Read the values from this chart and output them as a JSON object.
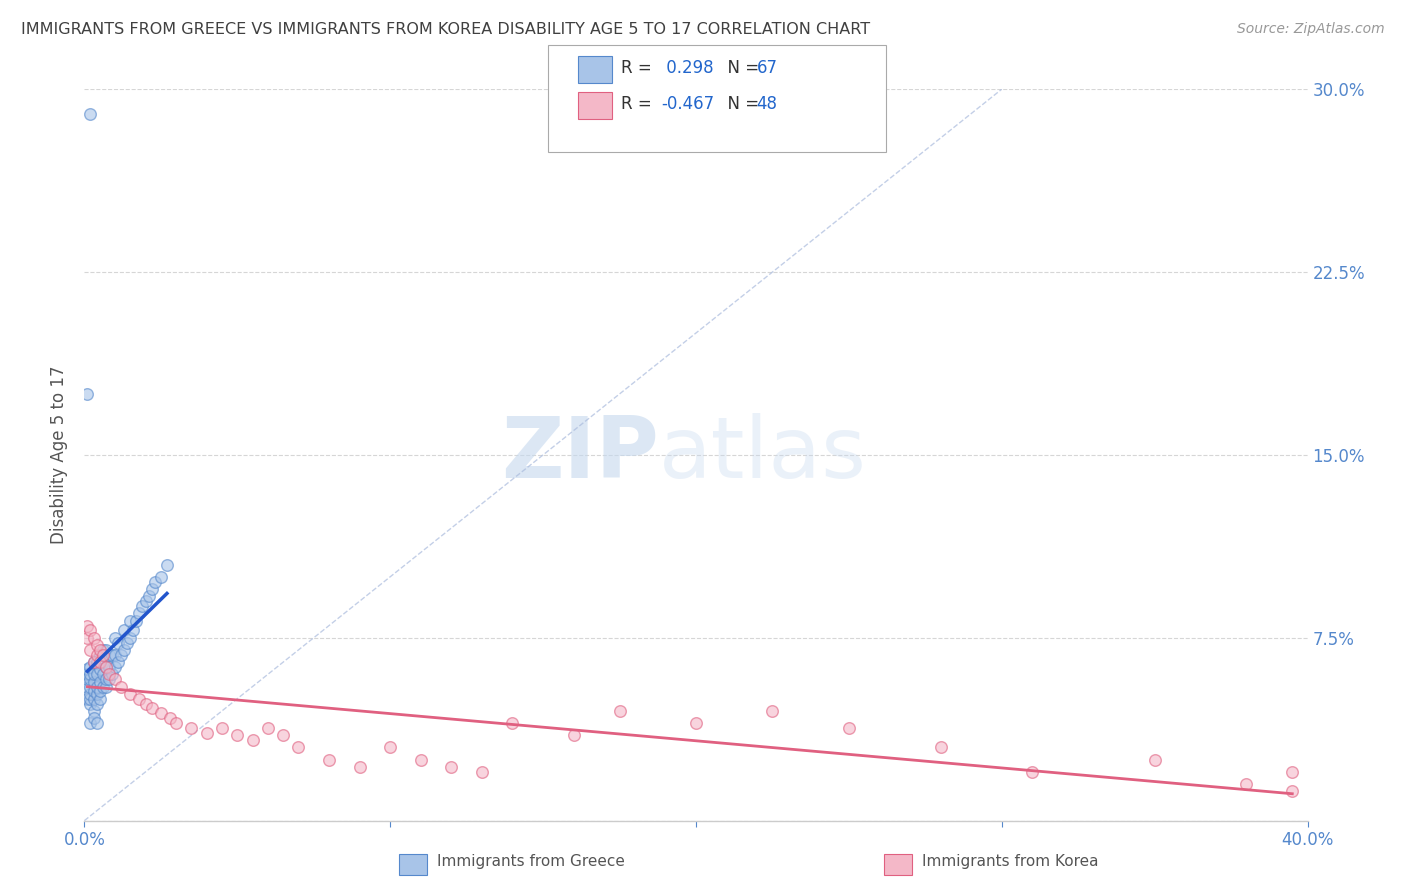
{
  "title": "IMMIGRANTS FROM GREECE VS IMMIGRANTS FROM KOREA DISABILITY AGE 5 TO 17 CORRELATION CHART",
  "source": "Source: ZipAtlas.com",
  "ylabel": "Disability Age 5 to 17",
  "xlim": [
    0.0,
    0.4
  ],
  "ylim": [
    0.0,
    0.3
  ],
  "greece_color": "#a8c4e8",
  "greece_edge": "#5588cc",
  "korea_color": "#f4b8c8",
  "korea_edge": "#e06080",
  "greece_line_color": "#2255cc",
  "korea_line_color": "#e06080",
  "R_greece": 0.298,
  "N_greece": 67,
  "R_korea": -0.467,
  "N_korea": 48,
  "legend_label_greece": "Immigrants from Greece",
  "legend_label_korea": "Immigrants from Korea",
  "watermark_zip": "ZIP",
  "watermark_atlas": "atlas",
  "background_color": "#ffffff",
  "grid_color": "#cccccc",
  "title_color": "#404040",
  "axis_label_color": "#555555",
  "tick_color": "#5588cc",
  "scatter_alpha": 0.6,
  "scatter_size": 70,
  "greece_scatter_x": [
    0.001,
    0.001,
    0.001,
    0.001,
    0.001,
    0.002,
    0.002,
    0.002,
    0.002,
    0.002,
    0.002,
    0.002,
    0.003,
    0.003,
    0.003,
    0.003,
    0.003,
    0.003,
    0.004,
    0.004,
    0.004,
    0.004,
    0.004,
    0.005,
    0.005,
    0.005,
    0.005,
    0.005,
    0.006,
    0.006,
    0.006,
    0.006,
    0.007,
    0.007,
    0.007,
    0.007,
    0.008,
    0.008,
    0.008,
    0.009,
    0.009,
    0.01,
    0.01,
    0.01,
    0.011,
    0.011,
    0.012,
    0.013,
    0.013,
    0.014,
    0.015,
    0.015,
    0.016,
    0.017,
    0.018,
    0.019,
    0.02,
    0.021,
    0.022,
    0.023,
    0.025,
    0.027,
    0.001,
    0.002,
    0.002,
    0.003,
    0.004
  ],
  "greece_scatter_y": [
    0.05,
    0.055,
    0.058,
    0.06,
    0.062,
    0.048,
    0.05,
    0.052,
    0.055,
    0.058,
    0.06,
    0.063,
    0.045,
    0.05,
    0.053,
    0.057,
    0.06,
    0.065,
    0.048,
    0.052,
    0.055,
    0.06,
    0.065,
    0.05,
    0.053,
    0.057,
    0.062,
    0.068,
    0.055,
    0.06,
    0.065,
    0.07,
    0.055,
    0.058,
    0.063,
    0.07,
    0.058,
    0.063,
    0.068,
    0.06,
    0.068,
    0.063,
    0.068,
    0.075,
    0.065,
    0.073,
    0.068,
    0.07,
    0.078,
    0.073,
    0.075,
    0.082,
    0.078,
    0.082,
    0.085,
    0.088,
    0.09,
    0.092,
    0.095,
    0.098,
    0.1,
    0.105,
    0.175,
    0.29,
    0.04,
    0.042,
    0.04
  ],
  "korea_scatter_x": [
    0.001,
    0.001,
    0.002,
    0.002,
    0.003,
    0.003,
    0.004,
    0.004,
    0.005,
    0.005,
    0.006,
    0.007,
    0.008,
    0.01,
    0.012,
    0.015,
    0.018,
    0.02,
    0.022,
    0.025,
    0.028,
    0.03,
    0.035,
    0.04,
    0.045,
    0.05,
    0.055,
    0.06,
    0.065,
    0.07,
    0.08,
    0.09,
    0.1,
    0.11,
    0.12,
    0.13,
    0.14,
    0.16,
    0.175,
    0.2,
    0.225,
    0.25,
    0.28,
    0.31,
    0.35,
    0.38,
    0.395,
    0.395
  ],
  "korea_scatter_y": [
    0.075,
    0.08,
    0.07,
    0.078,
    0.065,
    0.075,
    0.068,
    0.072,
    0.065,
    0.07,
    0.068,
    0.063,
    0.06,
    0.058,
    0.055,
    0.052,
    0.05,
    0.048,
    0.046,
    0.044,
    0.042,
    0.04,
    0.038,
    0.036,
    0.038,
    0.035,
    0.033,
    0.038,
    0.035,
    0.03,
    0.025,
    0.022,
    0.03,
    0.025,
    0.022,
    0.02,
    0.04,
    0.035,
    0.045,
    0.04,
    0.045,
    0.038,
    0.03,
    0.02,
    0.025,
    0.015,
    0.012,
    0.02
  ]
}
